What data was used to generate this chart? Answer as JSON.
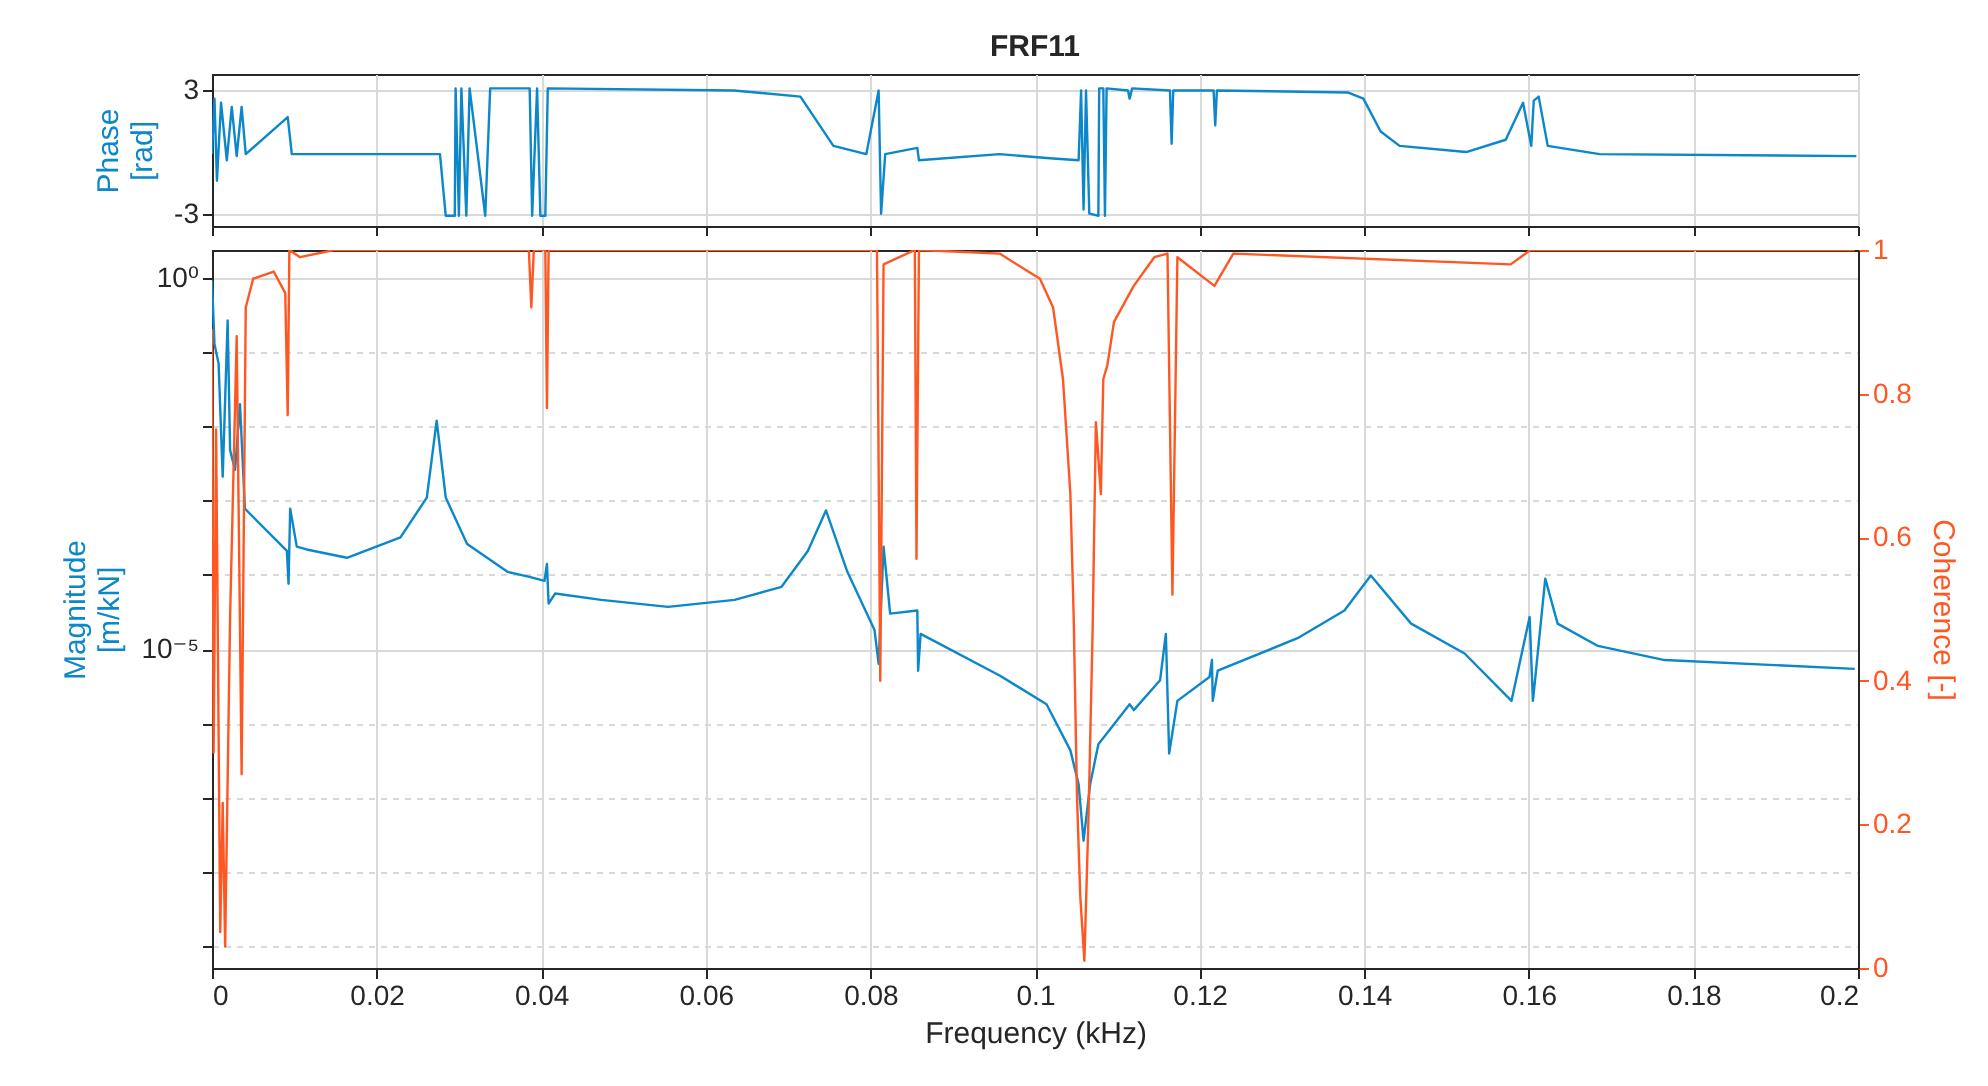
{
  "chart_data": [
    {
      "type": "line",
      "title": "FRF11",
      "ylabel": "Phase [rad]",
      "xlim": [
        0,
        0.2
      ],
      "xticks": [
        0,
        0.02,
        0.04,
        0.06,
        0.08,
        0.1,
        0.12,
        0.14,
        0.16,
        0.18,
        0.2
      ],
      "ylim": [
        -3.6,
        3.8
      ],
      "yticks": [
        -3,
        3
      ],
      "grid": true,
      "tick_labels": "y",
      "series": [
        {
          "color": "#0c87c9",
          "x": [
            0,
            0.0003,
            0.0006,
            0.0011,
            0.0018,
            0.0024,
            0.003,
            0.0036,
            0.0041,
            0.0092,
            0.0097,
            0.0277,
            0.0284,
            0.0295,
            0.0296,
            0.03,
            0.0303,
            0.0309,
            0.0313,
            0.0332,
            0.0338,
            0.0386,
            0.0389,
            0.0395,
            0.0399,
            0.0405,
            0.0408,
            0.0634,
            0.0715,
            0.074,
            0.0755,
            0.0795,
            0.081,
            0.0813,
            0.0818,
            0.0857,
            0.0859,
            0.0957,
            0.1018,
            0.1053,
            0.1056,
            0.1059,
            0.1062,
            0.1066,
            0.1077,
            0.1078,
            0.1083,
            0.1085,
            0.1087,
            0.1113,
            0.1115,
            0.1118,
            0.1164,
            0.1166,
            0.1168,
            0.1217,
            0.1219,
            0.1221,
            0.138,
            0.1399,
            0.142,
            0.1443,
            0.1524,
            0.1572,
            0.1593,
            0.1603,
            0.1606,
            0.1612,
            0.1623,
            0.1686,
            0.1998
          ],
          "values": [
            -0.1,
            2.6,
            -1.4,
            2.4,
            -0.4,
            2.2,
            -0.2,
            2.2,
            -0.1,
            1.7,
            -0.1,
            -0.1,
            -3.1,
            -3.1,
            3.1,
            -3.1,
            3.1,
            -3.1,
            3.1,
            -3.1,
            3.1,
            3.1,
            -3.1,
            3.1,
            -3.1,
            -3.1,
            3.1,
            3.0,
            2.7,
            1.2,
            0.3,
            -0.1,
            3.0,
            -3.0,
            -0.1,
            0.2,
            -0.4,
            -0.1,
            -0.3,
            -0.4,
            3.0,
            -2.8,
            3.0,
            -3.0,
            -3.1,
            3.1,
            3.1,
            -3.1,
            3.1,
            3.0,
            2.6,
            3.1,
            3.0,
            0.4,
            3.0,
            3.0,
            1.3,
            3.0,
            2.9,
            2.6,
            1.0,
            0.3,
            0.0,
            0.6,
            2.4,
            0.3,
            2.5,
            2.7,
            0.3,
            -0.1,
            -0.2
          ]
        }
      ]
    },
    {
      "type": "line",
      "xlabel": "Frequency (kHz)",
      "ylabel": "Magnitude [m/kN]",
      "y2label": "Coherence [-]",
      "log": "y",
      "xlim": [
        0,
        0.2
      ],
      "xticks": [
        0,
        0.02,
        0.04,
        0.06,
        0.08,
        0.1,
        0.12,
        0.14,
        0.16,
        0.18,
        0.2
      ],
      "ylim": [
        5e-10,
        2.4
      ],
      "yticks": [
        {
          "value": 1e-09,
          "label": null
        },
        {
          "value": 1e-08,
          "label": null
        },
        {
          "value": 1e-07,
          "label": null
        },
        {
          "value": 1e-06,
          "label": null
        },
        {
          "value": 1e-05,
          "label": "10⁻⁵"
        },
        {
          "value": 0.0001,
          "label": null
        },
        {
          "value": 0.001,
          "label": null
        },
        {
          "value": 0.01,
          "label": null
        },
        {
          "value": 0.1,
          "label": null
        },
        {
          "value": 1,
          "label": "10⁰"
        }
      ],
      "y2lim": [
        0,
        1
      ],
      "y2ticks": [
        0,
        0.2,
        0.4,
        0.6,
        0.8,
        1
      ],
      "grid": true,
      "series": [
        {
          "color": "#0c87c9",
          "x": [
            0,
            0.0003,
            0.0008,
            0.0013,
            0.0019,
            0.0022,
            0.0028,
            0.0034,
            0.004,
            0.0091,
            0.0093,
            0.0095,
            0.0103,
            0.0115,
            0.0164,
            0.0229,
            0.0261,
            0.0273,
            0.0284,
            0.031,
            0.0359,
            0.0387,
            0.0404,
            0.0407,
            0.0409,
            0.0417,
            0.0473,
            0.0554,
            0.0635,
            0.0692,
            0.0724,
            0.0746,
            0.0772,
            0.0805,
            0.081,
            0.0816,
            0.0824,
            0.0857,
            0.0858,
            0.0861,
            0.0957,
            0.1014,
            0.1043,
            0.1053,
            0.1059,
            0.1067,
            0.1077,
            0.1115,
            0.112,
            0.1152,
            0.1159,
            0.1163,
            0.1173,
            0.1212,
            0.1215,
            0.1216,
            0.1222,
            0.1319,
            0.1376,
            0.1408,
            0.1457,
            0.1522,
            0.1579,
            0.1601,
            0.1605,
            0.162,
            0.1635,
            0.1684,
            0.1765,
            0.1996
          ],
          "values": [
            0.93,
            0.13,
            0.071,
            0.0021,
            0.27,
            0.0048,
            0.0026,
            0.02,
            0.00078,
            0.00021,
            7.6e-05,
            0.00078,
            0.00024,
            0.00022,
            0.00017,
            0.00032,
            0.0011,
            0.012,
            0.0011,
            0.00026,
            0.00011,
            9.3e-05,
            8.3e-05,
            0.00014,
            4.1e-05,
            5.6e-05,
            4.6e-05,
            3.7e-05,
            4.6e-05,
            6.9e-05,
            0.00021,
            0.00074,
            0.00011,
            1.8e-05,
            6.3e-06,
            0.00024,
            3e-05,
            3.3e-05,
            5.1e-06,
            1.6e-05,
            4.4e-06,
            1.8e-06,
            4.3e-07,
            1.5e-07,
            2.6e-08,
            1.5e-07,
            5.2e-07,
            1.8e-06,
            1.5e-06,
            3.8e-06,
            1.6e-05,
            3.9e-07,
            2e-06,
            4.2e-06,
            7.1e-06,
            2e-06,
            5.1e-06,
            1.4e-05,
            3.3e-05,
            9.8e-05,
            2.2e-05,
            8.7e-06,
            2e-06,
            2.7e-05,
            2e-06,
            8.9e-05,
            2.2e-05,
            1.1e-05,
            7.1e-06,
            5.4e-06
          ]
        },
        {
          "color": "#ff5722",
          "axis": "y2",
          "x": [
            0,
            0.0002,
            0.0005,
            0.001,
            0.0013,
            0.0016,
            0.0022,
            0.003,
            0.0036,
            0.0041,
            0.005,
            0.0075,
            0.0089,
            0.0092,
            0.0094,
            0.0107,
            0.0148,
            0.0385,
            0.0388,
            0.0391,
            0.0405,
            0.0407,
            0.0409,
            0.0808,
            0.0812,
            0.0816,
            0.0854,
            0.0856,
            0.0859,
            0.0957,
            0.1006,
            0.1022,
            0.1034,
            0.1043,
            0.1047,
            0.1051,
            0.1055,
            0.106,
            0.1065,
            0.107,
            0.1074,
            0.108,
            0.1083,
            0.1088,
            0.1096,
            0.112,
            0.1145,
            0.1161,
            0.1167,
            0.1173,
            0.1218,
            0.1241,
            0.1578,
            0.1602,
            0.1996
          ],
          "values": [
            0.89,
            0.3,
            0.75,
            0.05,
            0.23,
            0.03,
            0.49,
            0.88,
            0.27,
            0.92,
            0.96,
            0.97,
            0.94,
            0.77,
            1.0,
            0.99,
            1.0,
            1.0,
            0.92,
            1.0,
            1.0,
            0.78,
            1.0,
            1.0,
            0.4,
            0.98,
            1.0,
            0.57,
            1.0,
            0.995,
            0.96,
            0.92,
            0.82,
            0.66,
            0.49,
            0.24,
            0.1,
            0.01,
            0.21,
            0.47,
            0.76,
            0.66,
            0.82,
            0.84,
            0.9,
            0.95,
            0.99,
            0.995,
            0.52,
            0.99,
            0.95,
            0.995,
            0.98,
            1.0,
            1.0
          ]
        }
      ]
    }
  ]
}
